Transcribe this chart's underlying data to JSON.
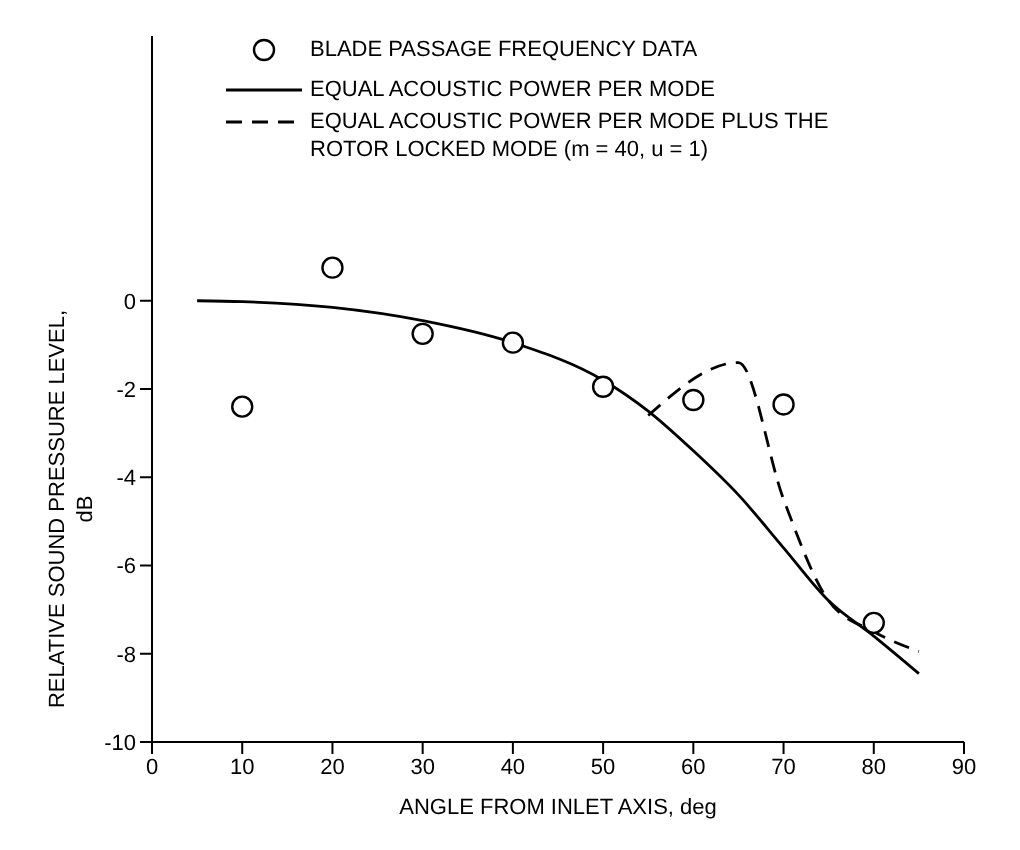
{
  "chart_data": {
    "type": "line",
    "xlabel": "ANGLE FROM INLET AXIS, deg",
    "ylabel": "RELATIVE SOUND PRESSURE LEVEL, dB",
    "xlim": [
      0,
      90
    ],
    "xticks": [
      0,
      10,
      20,
      30,
      40,
      50,
      60,
      70,
      80,
      90
    ],
    "ylim": [
      -10,
      6
    ],
    "yticks": [
      -10,
      -8,
      -6,
      -4,
      -2,
      0
    ],
    "grid": false,
    "legend": "top",
    "series": [
      {
        "name": "BLADE PASSAGE FREQUENCY DATA",
        "type": "scatter",
        "marker": "circle",
        "color": "#000000",
        "x": [
          10,
          20,
          30,
          40,
          50,
          60,
          70,
          80
        ],
        "values": [
          -2.4,
          0.75,
          -0.75,
          -0.95,
          -1.95,
          -2.25,
          -2.35,
          -7.3
        ]
      },
      {
        "name": "EQUAL ACOUSTIC POWER PER MODE",
        "line_style": "solid",
        "color": "#000000",
        "x": [
          5,
          10,
          20,
          30,
          40,
          50,
          55,
          60,
          65,
          70,
          75,
          80,
          85
        ],
        "values": [
          0,
          -0.02,
          -0.15,
          -0.45,
          -0.95,
          -1.8,
          -2.5,
          -3.4,
          -4.4,
          -5.6,
          -6.8,
          -7.6,
          -8.45
        ]
      },
      {
        "name": "EQUAL ACOUSTIC POWER PER MODE PLUS THE ROTOR LOCKED MODE (m = 40, u = 1)",
        "line_style": "dashed",
        "color": "#000000",
        "x": [
          55,
          65,
          70,
          75,
          80,
          85
        ],
        "values": [
          -2.6,
          -1.4,
          -4.5,
          -6.8,
          -7.5,
          -7.95
        ]
      }
    ]
  }
}
